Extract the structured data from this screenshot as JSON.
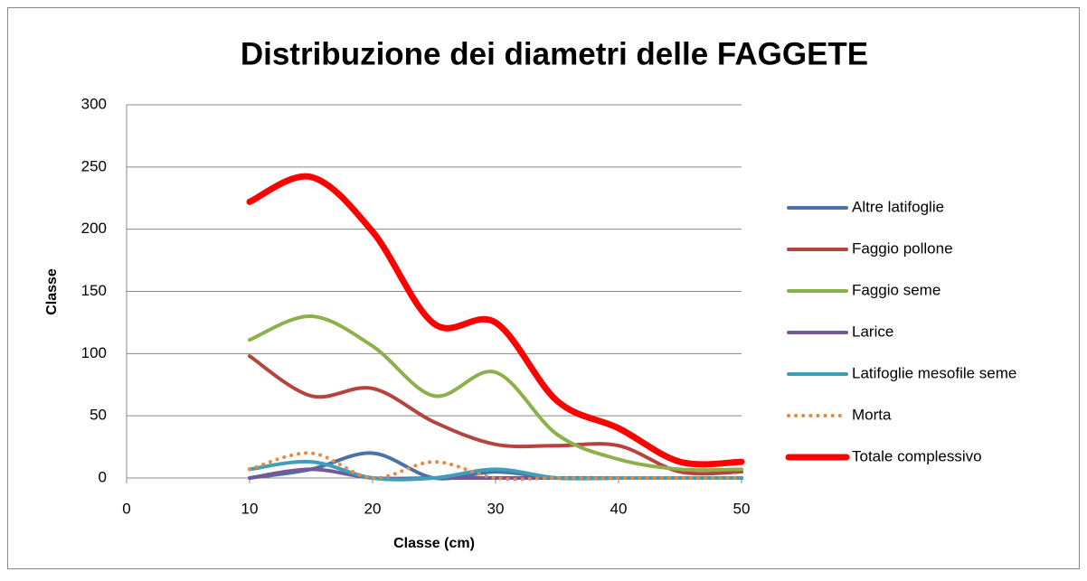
{
  "chart_data": {
    "type": "line",
    "smooth": true,
    "title": "Distribuzione dei diametri delle FAGGETE",
    "xlabel": "Classe (cm)",
    "ylabel": "Classe",
    "x": [
      10,
      15,
      20,
      25,
      30,
      35,
      40,
      45,
      50
    ],
    "xlim": [
      0,
      50
    ],
    "xticks": [
      0,
      10,
      20,
      30,
      40,
      50
    ],
    "ylim": [
      0,
      300
    ],
    "yticks": [
      0,
      50,
      100,
      150,
      200,
      250,
      300
    ],
    "grid": true,
    "legend": "right",
    "series": [
      {
        "name": "Altre latifoglie",
        "color": "#4a72a8",
        "values": [
          0,
          7,
          20,
          0,
          5,
          0,
          0,
          0,
          0
        ]
      },
      {
        "name": "Faggio pollone",
        "color": "#b5443f",
        "values": [
          98,
          66,
          72,
          45,
          27,
          26,
          26,
          5,
          5
        ]
      },
      {
        "name": "Faggio seme",
        "color": "#8cb04a",
        "values": [
          111,
          130,
          106,
          66,
          85,
          35,
          15,
          7,
          7
        ]
      },
      {
        "name": "Larice",
        "color": "#74589a",
        "values": [
          0,
          7,
          0,
          0,
          0,
          0,
          0,
          0,
          0
        ]
      },
      {
        "name": "Latifoglie mesofile seme",
        "color": "#3e9fbb",
        "values": [
          7,
          13,
          0,
          0,
          7,
          0,
          0,
          0,
          0
        ]
      },
      {
        "name": "Morta",
        "color": "#e9883f",
        "dashed": true,
        "values": [
          7,
          20,
          0,
          13,
          0,
          0,
          0,
          0,
          0
        ]
      },
      {
        "name": "Totale complessivo",
        "color": "#ff0000",
        "width": 7,
        "values": [
          222,
          242,
          198,
          124,
          125,
          62,
          40,
          13,
          13
        ]
      }
    ]
  }
}
